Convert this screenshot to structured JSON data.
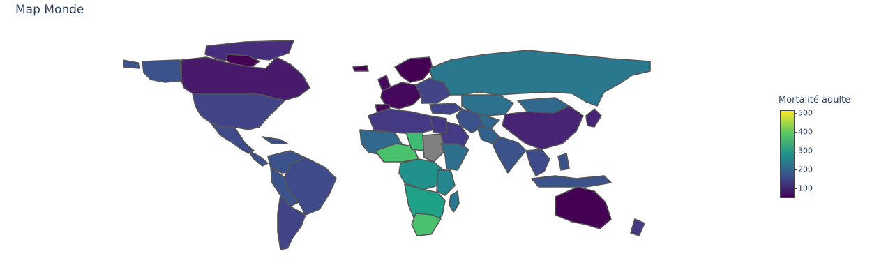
{
  "title": "Map Monde",
  "legend": {
    "title": "Mortalité adulte",
    "ticks": [
      "500",
      "400",
      "300",
      "200",
      "100"
    ],
    "tick_values": [
      500,
      400,
      300,
      200,
      100
    ],
    "range": [
      50,
      515
    ],
    "colorscale": [
      "#440154",
      "#3b528b",
      "#21918c",
      "#5ec962",
      "#fde725"
    ]
  },
  "map": {
    "no_data_color": "#808080",
    "border_color": "#555555"
  }
}
